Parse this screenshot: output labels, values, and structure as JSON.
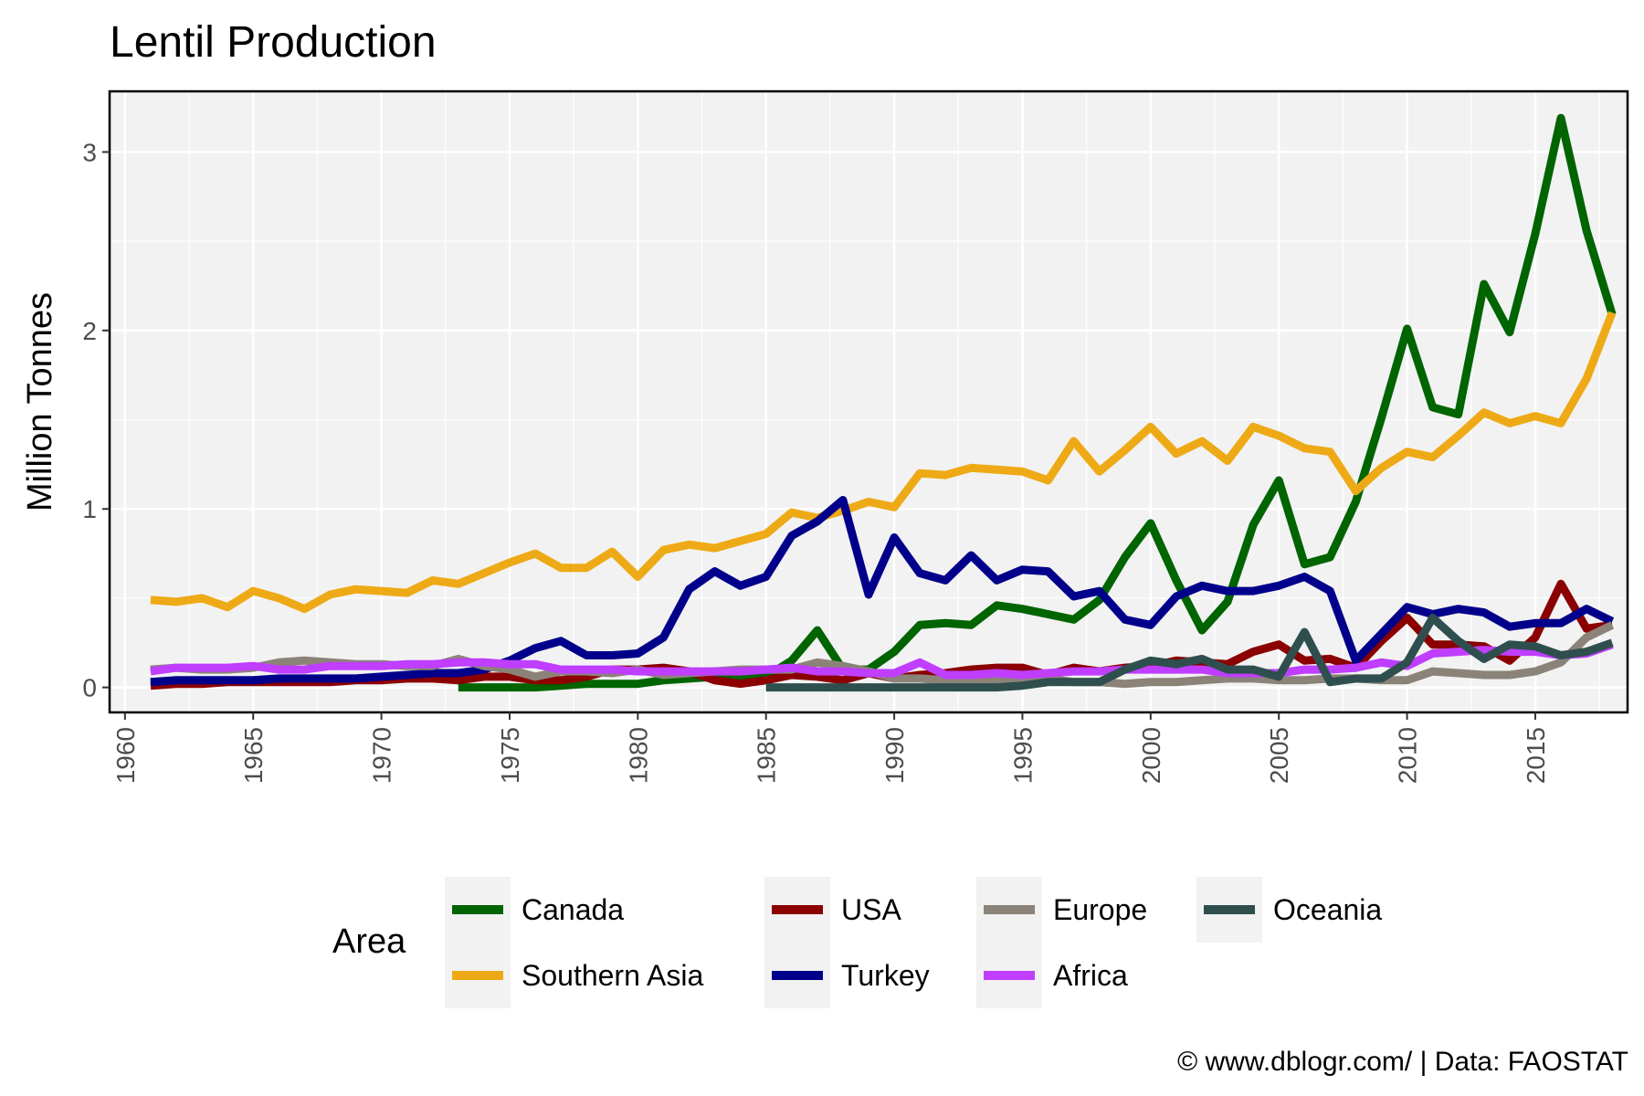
{
  "chart_data": {
    "type": "line",
    "title": "Lentil Production",
    "xlabel": "",
    "ylabel": "Million Tonnes",
    "xlim": [
      1960,
      2018
    ],
    "ylim": [
      0,
      3.3
    ],
    "x_ticks": [
      "1960",
      "1965",
      "1970",
      "1975",
      "1980",
      "1985",
      "1990",
      "1995",
      "2000",
      "2005",
      "2010",
      "2015"
    ],
    "y_ticks": [
      "0",
      "1",
      "2",
      "3"
    ],
    "grid": true,
    "legend": {
      "title": "Area",
      "position": "bottom"
    },
    "caption": "© www.dblogr.com/  |  Data: FAOSTAT",
    "series": [
      {
        "name": "Canada",
        "color": "#006400",
        "x": [
          1973,
          1974,
          1975,
          1976,
          1977,
          1978,
          1979,
          1980,
          1981,
          1982,
          1983,
          1984,
          1985,
          1986,
          1987,
          1988,
          1989,
          1990,
          1991,
          1992,
          1993,
          1994,
          1995,
          1996,
          1997,
          1998,
          1999,
          2000,
          2001,
          2002,
          2003,
          2004,
          2005,
          2006,
          2007,
          2008,
          2009,
          2010,
          2011,
          2012,
          2013,
          2014,
          2015,
          2016,
          2017,
          2018
        ],
        "y": [
          0.0,
          0.0,
          0.0,
          0.0,
          0.01,
          0.02,
          0.02,
          0.02,
          0.04,
          0.05,
          0.06,
          0.05,
          0.06,
          0.15,
          0.32,
          0.1,
          0.1,
          0.2,
          0.35,
          0.36,
          0.35,
          0.46,
          0.44,
          0.41,
          0.38,
          0.49,
          0.73,
          0.92,
          0.6,
          0.32,
          0.48,
          0.91,
          1.16,
          0.69,
          0.73,
          1.04,
          1.51,
          2.01,
          1.57,
          1.53,
          2.26,
          1.99,
          2.54,
          3.19,
          2.56,
          2.09
        ]
      },
      {
        "name": "Southern Asia",
        "color": "#eeaa16",
        "x": [
          1961,
          1962,
          1963,
          1964,
          1965,
          1966,
          1967,
          1968,
          1969,
          1970,
          1971,
          1972,
          1973,
          1974,
          1975,
          1976,
          1977,
          1978,
          1979,
          1980,
          1981,
          1982,
          1983,
          1984,
          1985,
          1986,
          1987,
          1988,
          1989,
          1990,
          1991,
          1992,
          1993,
          1994,
          1995,
          1996,
          1997,
          1998,
          1999,
          2000,
          2001,
          2002,
          2003,
          2004,
          2005,
          2006,
          2007,
          2008,
          2009,
          2010,
          2011,
          2012,
          2013,
          2014,
          2015,
          2016,
          2017,
          2018
        ],
        "y": [
          0.49,
          0.48,
          0.5,
          0.45,
          0.54,
          0.5,
          0.44,
          0.52,
          0.55,
          0.54,
          0.53,
          0.6,
          0.58,
          0.64,
          0.7,
          0.75,
          0.67,
          0.67,
          0.76,
          0.62,
          0.77,
          0.8,
          0.78,
          0.82,
          0.86,
          0.98,
          0.95,
          0.99,
          1.04,
          1.01,
          1.2,
          1.19,
          1.23,
          1.22,
          1.21,
          1.16,
          1.38,
          1.21,
          1.33,
          1.46,
          1.31,
          1.38,
          1.27,
          1.46,
          1.41,
          1.34,
          1.32,
          1.1,
          1.23,
          1.32,
          1.29,
          1.41,
          1.54,
          1.48,
          1.52,
          1.48,
          1.73,
          2.1
        ]
      },
      {
        "name": "USA",
        "color": "#8b0000",
        "x": [
          1961,
          1962,
          1963,
          1964,
          1965,
          1966,
          1967,
          1968,
          1969,
          1970,
          1971,
          1972,
          1973,
          1974,
          1975,
          1976,
          1977,
          1978,
          1979,
          1980,
          1981,
          1982,
          1983,
          1984,
          1985,
          1986,
          1987,
          1988,
          1989,
          1990,
          1991,
          1992,
          1993,
          1994,
          1995,
          1996,
          1997,
          1998,
          1999,
          2000,
          2001,
          2002,
          2003,
          2004,
          2005,
          2006,
          2007,
          2008,
          2009,
          2010,
          2011,
          2012,
          2013,
          2014,
          2015,
          2016,
          2017,
          2018
        ],
        "y": [
          0.01,
          0.02,
          0.02,
          0.03,
          0.03,
          0.03,
          0.03,
          0.03,
          0.04,
          0.04,
          0.05,
          0.05,
          0.04,
          0.06,
          0.06,
          0.04,
          0.04,
          0.06,
          0.1,
          0.1,
          0.11,
          0.09,
          0.04,
          0.02,
          0.04,
          0.07,
          0.06,
          0.04,
          0.08,
          0.05,
          0.07,
          0.08,
          0.1,
          0.11,
          0.11,
          0.07,
          0.11,
          0.09,
          0.11,
          0.12,
          0.15,
          0.14,
          0.13,
          0.2,
          0.24,
          0.15,
          0.16,
          0.11,
          0.26,
          0.39,
          0.24,
          0.24,
          0.23,
          0.15,
          0.28,
          0.58,
          0.33,
          0.35
        ]
      },
      {
        "name": "Turkey",
        "color": "#00008b",
        "x": [
          1961,
          1962,
          1963,
          1964,
          1965,
          1966,
          1967,
          1968,
          1969,
          1970,
          1971,
          1972,
          1973,
          1974,
          1975,
          1976,
          1977,
          1978,
          1979,
          1980,
          1981,
          1982,
          1983,
          1984,
          1985,
          1986,
          1987,
          1988,
          1989,
          1990,
          1991,
          1992,
          1993,
          1994,
          1995,
          1996,
          1997,
          1998,
          1999,
          2000,
          2001,
          2002,
          2003,
          2004,
          2005,
          2006,
          2007,
          2008,
          2009,
          2010,
          2011,
          2012,
          2013,
          2014,
          2015,
          2016,
          2017,
          2018
        ],
        "y": [
          0.03,
          0.04,
          0.04,
          0.04,
          0.04,
          0.05,
          0.05,
          0.05,
          0.05,
          0.06,
          0.07,
          0.08,
          0.08,
          0.1,
          0.15,
          0.22,
          0.26,
          0.18,
          0.18,
          0.19,
          0.28,
          0.55,
          0.65,
          0.57,
          0.62,
          0.85,
          0.93,
          1.05,
          0.52,
          0.84,
          0.64,
          0.6,
          0.74,
          0.6,
          0.66,
          0.65,
          0.51,
          0.54,
          0.38,
          0.35,
          0.51,
          0.57,
          0.54,
          0.54,
          0.57,
          0.62,
          0.54,
          0.15,
          0.3,
          0.45,
          0.41,
          0.44,
          0.42,
          0.34,
          0.36,
          0.36,
          0.44,
          0.37
        ]
      },
      {
        "name": "Europe",
        "color": "#8b8378",
        "x": [
          1961,
          1962,
          1963,
          1964,
          1965,
          1966,
          1967,
          1968,
          1969,
          1970,
          1971,
          1972,
          1973,
          1974,
          1975,
          1976,
          1977,
          1978,
          1979,
          1980,
          1981,
          1982,
          1983,
          1984,
          1985,
          1986,
          1987,
          1988,
          1989,
          1990,
          1991,
          1992,
          1993,
          1994,
          1995,
          1996,
          1997,
          1998,
          1999,
          2000,
          2001,
          2002,
          2003,
          2004,
          2005,
          2006,
          2007,
          2008,
          2009,
          2010,
          2011,
          2012,
          2013,
          2014,
          2015,
          2016,
          2017,
          2018
        ],
        "y": [
          0.1,
          0.11,
          0.1,
          0.1,
          0.11,
          0.14,
          0.15,
          0.14,
          0.13,
          0.13,
          0.12,
          0.12,
          0.16,
          0.12,
          0.1,
          0.06,
          0.09,
          0.09,
          0.08,
          0.1,
          0.07,
          0.08,
          0.09,
          0.1,
          0.1,
          0.1,
          0.14,
          0.12,
          0.09,
          0.05,
          0.05,
          0.04,
          0.04,
          0.04,
          0.05,
          0.05,
          0.03,
          0.03,
          0.02,
          0.03,
          0.03,
          0.04,
          0.05,
          0.05,
          0.04,
          0.04,
          0.05,
          0.05,
          0.04,
          0.04,
          0.09,
          0.08,
          0.07,
          0.07,
          0.09,
          0.14,
          0.28,
          0.35
        ]
      },
      {
        "name": "Africa",
        "color": "#bf3eff",
        "x": [
          1961,
          1962,
          1963,
          1964,
          1965,
          1966,
          1967,
          1968,
          1969,
          1970,
          1971,
          1972,
          1973,
          1974,
          1975,
          1976,
          1977,
          1978,
          1979,
          1980,
          1981,
          1982,
          1983,
          1984,
          1985,
          1986,
          1987,
          1988,
          1989,
          1990,
          1991,
          1992,
          1993,
          1994,
          1995,
          1996,
          1997,
          1998,
          1999,
          2000,
          2001,
          2002,
          2003,
          2004,
          2005,
          2006,
          2007,
          2008,
          2009,
          2010,
          2011,
          2012,
          2013,
          2014,
          2015,
          2016,
          2017,
          2018
        ],
        "y": [
          0.09,
          0.11,
          0.11,
          0.11,
          0.12,
          0.1,
          0.1,
          0.12,
          0.12,
          0.12,
          0.13,
          0.13,
          0.14,
          0.14,
          0.13,
          0.13,
          0.1,
          0.1,
          0.1,
          0.09,
          0.09,
          0.09,
          0.09,
          0.09,
          0.1,
          0.11,
          0.09,
          0.09,
          0.08,
          0.08,
          0.14,
          0.07,
          0.07,
          0.08,
          0.07,
          0.08,
          0.09,
          0.09,
          0.1,
          0.1,
          0.1,
          0.1,
          0.08,
          0.08,
          0.08,
          0.1,
          0.1,
          0.11,
          0.14,
          0.12,
          0.19,
          0.2,
          0.21,
          0.2,
          0.2,
          0.18,
          0.19,
          0.24
        ]
      },
      {
        "name": "Oceania",
        "color": "#2f4f4f",
        "x": [
          1985,
          1986,
          1987,
          1988,
          1989,
          1990,
          1991,
          1992,
          1993,
          1994,
          1995,
          1996,
          1997,
          1998,
          1999,
          2000,
          2001,
          2002,
          2003,
          2004,
          2005,
          2006,
          2007,
          2008,
          2009,
          2010,
          2011,
          2012,
          2013,
          2014,
          2015,
          2016,
          2017,
          2018
        ],
        "y": [
          0.0,
          0.0,
          0.0,
          0.0,
          0.0,
          0.0,
          0.0,
          0.0,
          0.0,
          0.0,
          0.01,
          0.03,
          0.03,
          0.03,
          0.1,
          0.15,
          0.13,
          0.16,
          0.1,
          0.1,
          0.06,
          0.31,
          0.03,
          0.05,
          0.05,
          0.14,
          0.39,
          0.26,
          0.16,
          0.24,
          0.23,
          0.18,
          0.2,
          0.25
        ]
      }
    ]
  }
}
